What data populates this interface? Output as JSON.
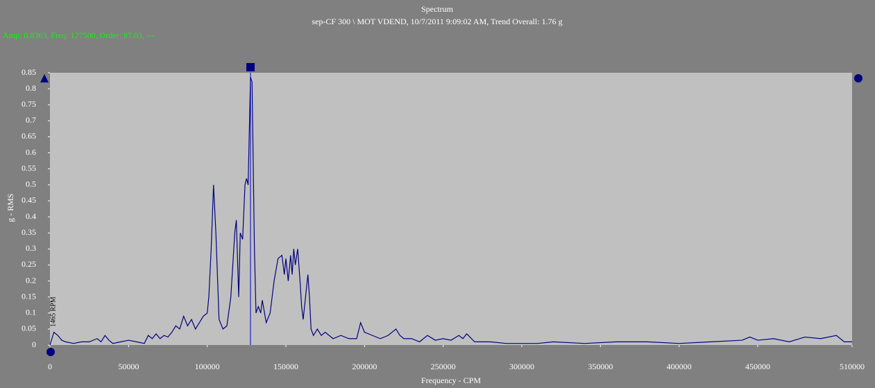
{
  "chart_data": {
    "type": "line",
    "title": "Spectrum",
    "subtitle": "sep-CF 300 \\ MOT VDEND, 10/7/2011 9:09:02 AM, Trend Overall: 1.76 g",
    "cursor_readout": "Amp: 0.8363, Freq: 127500, Order: 87.03, ---",
    "cursor_x": 127500,
    "annotation": "1465 RPM",
    "x_label": "Frequency - CPM",
    "y_label": "g - RMS",
    "xlim": [
      0,
      510000
    ],
    "ylim": [
      0,
      0.85
    ],
    "xticks": [
      0,
      50000,
      100000,
      150000,
      200000,
      250000,
      300000,
      350000,
      400000,
      450000,
      510000
    ],
    "yticks": [
      0,
      0.05,
      0.1,
      0.15,
      0.2,
      0.25,
      0.3,
      0.35,
      0.4,
      0.45,
      0.5,
      0.55,
      0.6,
      0.65,
      0.7,
      0.75,
      0.8,
      0.85
    ],
    "x": [
      0,
      2500,
      5000,
      7500,
      10000,
      15000,
      20000,
      25000,
      30000,
      32500,
      35000,
      37500,
      40000,
      45000,
      50000,
      55000,
      60000,
      62500,
      65000,
      67500,
      70000,
      72500,
      75000,
      77500,
      80000,
      82500,
      85000,
      87500,
      90000,
      92500,
      95000,
      97500,
      100000,
      101000,
      102500,
      104000,
      105500,
      107500,
      110000,
      112500,
      115000,
      117500,
      118500,
      120000,
      121000,
      122500,
      124000,
      125000,
      126000,
      127500,
      128500,
      130000,
      131000,
      132500,
      134000,
      135000,
      137500,
      140000,
      142500,
      145000,
      147500,
      149000,
      150000,
      151500,
      153000,
      154000,
      155000,
      156000,
      157500,
      159000,
      160000,
      161000,
      162500,
      164000,
      165000,
      166000,
      167500,
      170000,
      172500,
      175000,
      180000,
      185000,
      190000,
      195000,
      197500,
      200000,
      205000,
      210000,
      215000,
      220000,
      222500,
      225000,
      230000,
      235000,
      240000,
      245000,
      250000,
      255000,
      260000,
      262500,
      265000,
      270000,
      280000,
      290000,
      300000,
      310000,
      320000,
      340000,
      360000,
      380000,
      400000,
      420000,
      440000,
      445000,
      450000,
      460000,
      470000,
      480000,
      490000,
      500000,
      505000,
      510000
    ],
    "series": [
      {
        "color": "#000080",
        "values": [
          0,
          0.04,
          0.03,
          0.015,
          0.01,
          0.005,
          0.01,
          0.01,
          0.02,
          0.01,
          0.03,
          0.015,
          0.005,
          0.01,
          0.015,
          0.01,
          0.005,
          0.03,
          0.02,
          0.035,
          0.02,
          0.03,
          0.025,
          0.04,
          0.06,
          0.05,
          0.09,
          0.06,
          0.08,
          0.05,
          0.07,
          0.09,
          0.1,
          0.15,
          0.3,
          0.5,
          0.35,
          0.08,
          0.05,
          0.06,
          0.15,
          0.35,
          0.39,
          0.15,
          0.35,
          0.33,
          0.5,
          0.52,
          0.5,
          0.8363,
          0.82,
          0.3,
          0.1,
          0.12,
          0.1,
          0.14,
          0.07,
          0.1,
          0.2,
          0.27,
          0.28,
          0.22,
          0.27,
          0.2,
          0.28,
          0.22,
          0.3,
          0.25,
          0.3,
          0.2,
          0.12,
          0.08,
          0.15,
          0.22,
          0.15,
          0.05,
          0.03,
          0.05,
          0.03,
          0.04,
          0.02,
          0.03,
          0.02,
          0.02,
          0.07,
          0.04,
          0.03,
          0.02,
          0.03,
          0.05,
          0.03,
          0.02,
          0.02,
          0.01,
          0.03,
          0.015,
          0.02,
          0.015,
          0.03,
          0.02,
          0.035,
          0.01,
          0.01,
          0.005,
          0.005,
          0.005,
          0.01,
          0.005,
          0.01,
          0.01,
          0.005,
          0.01,
          0.015,
          0.025,
          0.015,
          0.02,
          0.01,
          0.025,
          0.02,
          0.03,
          0.01,
          0.01
        ]
      }
    ],
    "plot_background": "#c0c0c0",
    "cursor_color": "#0000cd"
  }
}
